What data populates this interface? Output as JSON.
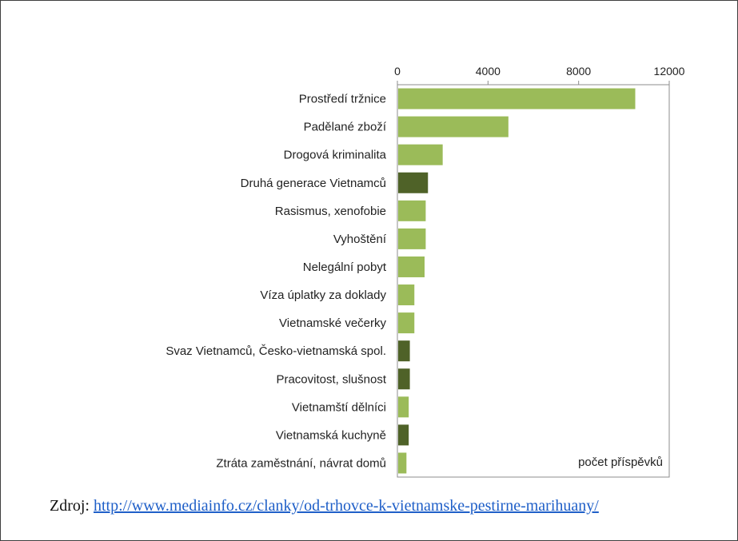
{
  "source": {
    "label": "Zdroj:",
    "url": "http://www.mediainfo.cz/clanky/od-trhovce-k-vietnamske-pestirne-marihuany/"
  },
  "colors": {
    "light_green": "#9bbb59",
    "dark_green": "#4f6228",
    "axis": "#8c8c8c",
    "text": "#222222",
    "frame": "#3f3f3f"
  },
  "chart_data": {
    "type": "bar",
    "orientation": "horizontal",
    "categories": [
      "Prostředí tržnice",
      "Padělané zboží",
      "Drogová kriminalita",
      "Druhá generace Vietnamců",
      "Rasismus, xenofobie",
      "Vyhoštění",
      "Nelegální pobyt",
      "Víza úplatky za doklady",
      "Vietnamské večerky",
      "Svaz Vietnamců, Česko-vietnamská spol.",
      "Pracovitost, slušnost",
      "Vietnamští dělníci",
      "Vietnamská kuchyně",
      "Ztráta zaměstnání, návrat domů"
    ],
    "values": [
      10500,
      4900,
      2000,
      1350,
      1250,
      1250,
      1200,
      750,
      750,
      550,
      550,
      500,
      500,
      400
    ],
    "bar_colors": [
      "light_green",
      "light_green",
      "light_green",
      "dark_green",
      "light_green",
      "light_green",
      "light_green",
      "light_green",
      "light_green",
      "dark_green",
      "dark_green",
      "light_green",
      "dark_green",
      "light_green"
    ],
    "xlim": [
      0,
      12000
    ],
    "xticks": [
      0,
      4000,
      8000,
      12000
    ],
    "xtick_labels": [
      "0",
      "4000",
      "8000",
      "12000"
    ],
    "xaxis_position": "top",
    "xlabel": "počet příspěvků",
    "xlabel_position": "bottom-right inside plot",
    "grid": false,
    "legend": "none"
  }
}
